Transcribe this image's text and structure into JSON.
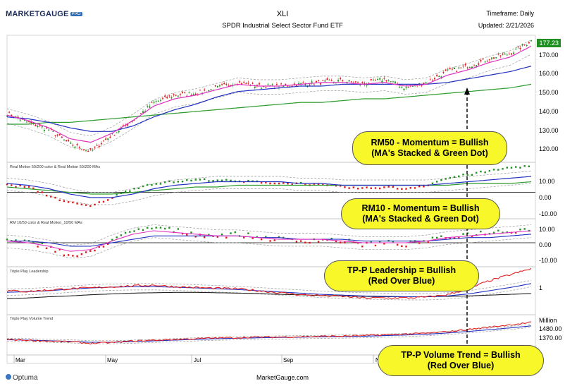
{
  "header": {
    "symbol": "XLI",
    "name": "SPDR Industrial Select Sector Fund ETF",
    "timeframe": "Timeframe: Daily",
    "updated": "Updated: 2/21/2026",
    "logo": "MARKETGAUGE",
    "logo_badge": "PRO"
  },
  "footer": {
    "site": "MarketGauge.com",
    "brand": "Optuma"
  },
  "colors": {
    "up": "#1f8f1f",
    "down": "#e01818",
    "pink": "#e030c0",
    "blue": "#2030c0",
    "green": "#2a9a2a",
    "gray_dash": "#999999",
    "callout": "#f7f72a",
    "red_line": "#e02020",
    "black_line": "#222222"
  },
  "months": [
    "Mar",
    "May",
    "Jul",
    "Sep",
    "Nov"
  ],
  "chart_data": [
    {
      "type": "line",
      "panel": "price",
      "last_price": "177.23",
      "y_ticks": [
        "170.00",
        "160.00",
        "150.00",
        "140.00",
        "130.00",
        "120.00"
      ],
      "ylim": [
        110,
        180
      ],
      "series_anchor_values": {
        "price": [
          137,
          132,
          128,
          120,
          116,
          125,
          133,
          143,
          147,
          148,
          151,
          154,
          152,
          152,
          153,
          154,
          155,
          153,
          156,
          151,
          154,
          160,
          163,
          167,
          170,
          177
        ],
        "ma10": [
          136,
          133,
          129,
          123,
          121,
          126,
          133,
          141,
          145,
          147,
          150,
          153,
          152,
          152,
          153,
          154,
          154,
          153,
          154,
          152,
          153,
          158,
          161,
          165,
          168,
          174
        ],
        "ma50": [
          135,
          134,
          132,
          129,
          127,
          127,
          130,
          135,
          139,
          142,
          146,
          149,
          150,
          151,
          152,
          152,
          153,
          153,
          153,
          153,
          153,
          154,
          156,
          158,
          160,
          163
        ],
        "ma200": [
          131,
          131,
          132,
          132,
          133,
          134,
          135,
          136,
          137,
          138,
          139,
          140,
          141,
          142,
          143,
          143,
          144,
          145,
          145,
          146,
          147,
          148,
          149,
          150,
          151,
          153
        ]
      }
    },
    {
      "type": "line",
      "panel": "rm50",
      "label": "Real Motion 50/200 color & Real Motion 50/200 MAs",
      "y_ticks": [
        "10.00",
        "0.00",
        "-10.00"
      ],
      "ylim": [
        -15,
        17
      ]
    },
    {
      "type": "line",
      "panel": "rm10",
      "label": "RM 10/50 color & Real Motion_10/50 MAs",
      "y_ticks": [
        "10.00",
        "0.00",
        "-10.00"
      ],
      "ylim": [
        -14,
        14
      ]
    },
    {
      "type": "line",
      "panel": "leadership",
      "label": "Triple Play Leadership",
      "y_ticks": [
        "1"
      ]
    },
    {
      "type": "line",
      "panel": "volume",
      "label": "Triple Play Volume Trend",
      "unit": "Million",
      "y_ticks": [
        "1480.00",
        "1370.00"
      ]
    }
  ],
  "callouts": [
    {
      "line1": "RM50 - Momentum = Bullish",
      "line2": "(MA's Stacked & Green Dot)"
    },
    {
      "line1": "RM10 - Momentum = Bullish",
      "line2": "(MA's Stacked & Green Dot)"
    },
    {
      "line1": "TP-P Leadership = Bullish",
      "line2": "(Red Over Blue)"
    },
    {
      "line1": "TP-P Volume Trend = Bullish",
      "line2": "(Red Over Blue)"
    }
  ]
}
